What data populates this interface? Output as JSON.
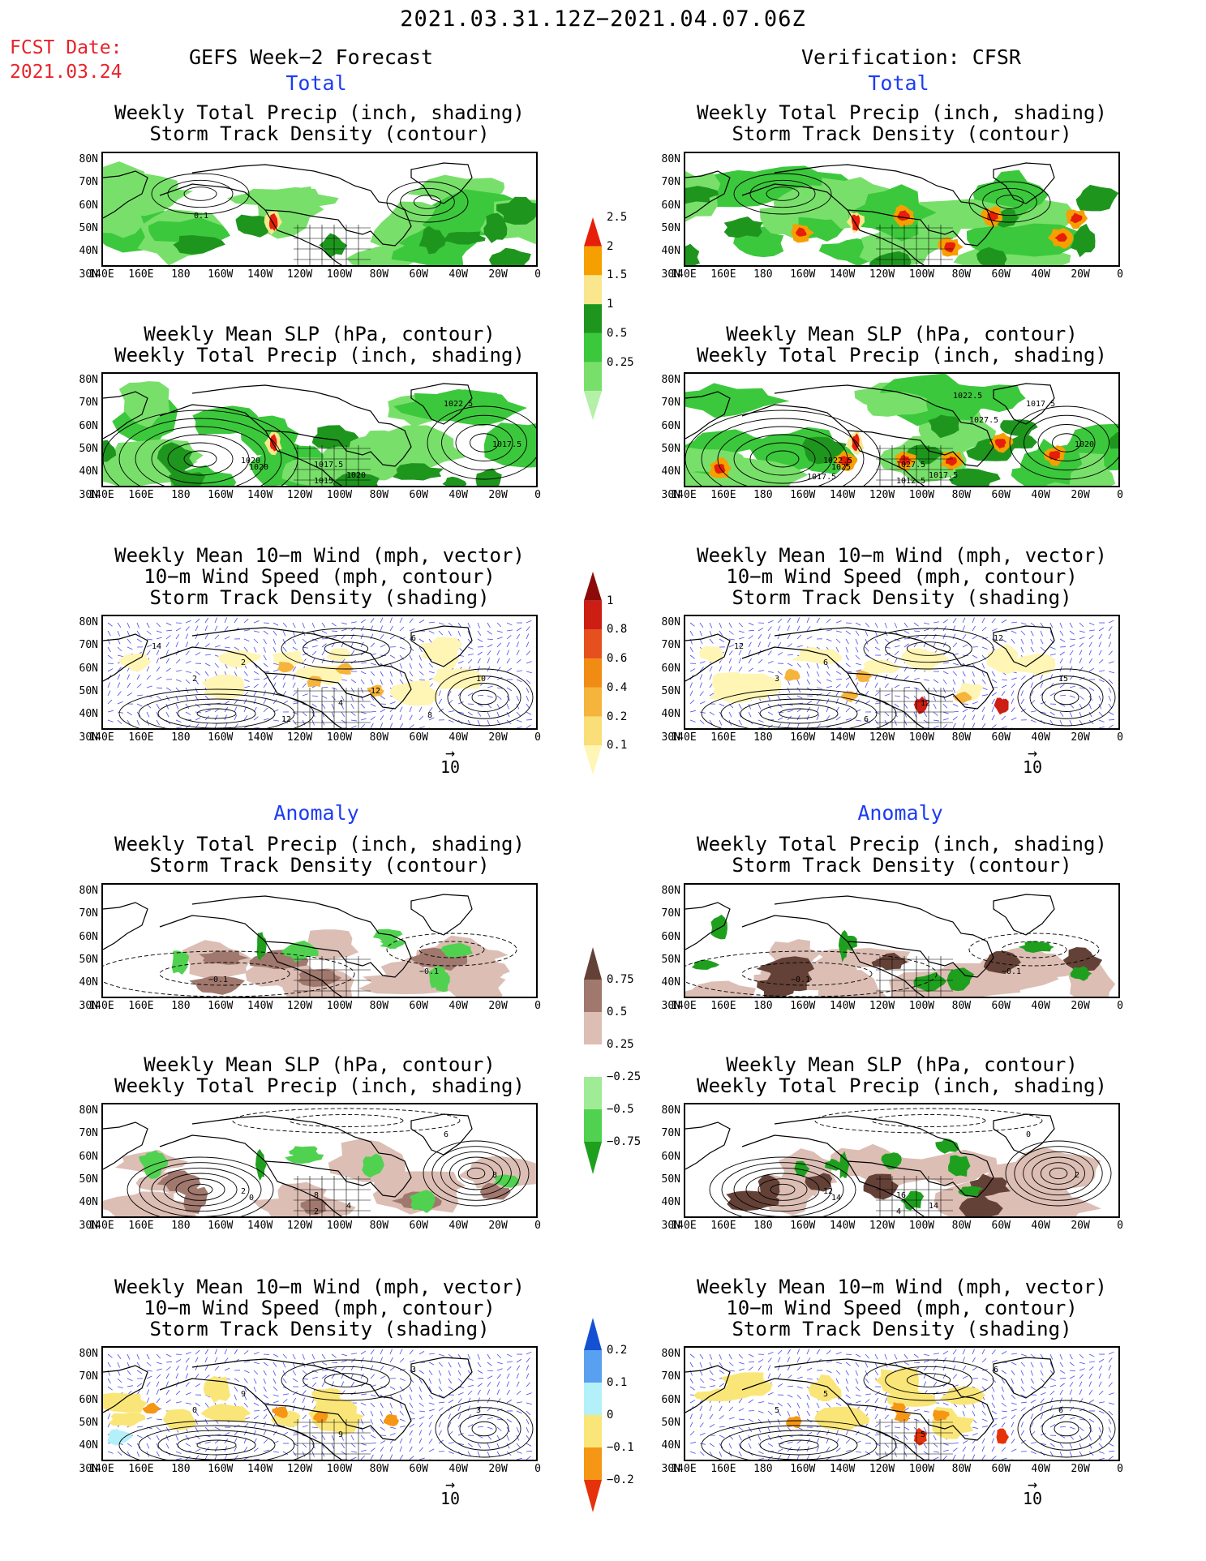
{
  "header": {
    "date_range": "2021.03.31.12Z−2021.04.07.06Z",
    "fcst_label": "FCST Date:",
    "fcst_date": "2021.03.24",
    "left_title": "GEFS Week−2 Forecast",
    "right_title": "Verification: CFSR",
    "total_label": "Total",
    "anomaly_label": "Anomaly"
  },
  "panel_titles": {
    "precip_storm": [
      "Weekly Total Precip (inch, shading)",
      "Storm Track Density (contour)"
    ],
    "slp_precip": [
      "Weekly Mean SLP (hPa, contour)",
      "Weekly Total Precip (inch, shading)"
    ],
    "wind_storm": [
      "Weekly Mean 10−m Wind (mph, vector)",
      "10−m Wind Speed (mph, contour)",
      "Storm Track Density (shading)"
    ]
  },
  "axes": {
    "lat_labels": [
      "80N",
      "70N",
      "60N",
      "50N",
      "40N",
      "30N"
    ],
    "lon_labels": [
      "140E",
      "160E",
      "180",
      "160W",
      "140W",
      "120W",
      "100W",
      "80W",
      "60W",
      "40W",
      "20W",
      "0"
    ],
    "ref_vector_value": "10"
  },
  "colorbars": {
    "total_precip": {
      "labels": [
        "0.25",
        "0.5",
        "1",
        "1.5",
        "2",
        "2.5"
      ],
      "colors": [
        "#b4f0a8",
        "#78e06a",
        "#3cc83c",
        "#1e961e",
        "#fae68c",
        "#f5a000",
        "#e61e0a"
      ]
    },
    "total_storm": {
      "labels": [
        "0.1",
        "0.2",
        "0.4",
        "0.6",
        "0.8",
        "1"
      ],
      "colors": [
        "#fff5b4",
        "#fade78",
        "#f5b43c",
        "#f08c14",
        "#e6501e",
        "#cd1e14",
        "#8c0a0a"
      ]
    },
    "anom_precip": {
      "labels": [
        "0.75",
        "0.5",
        "0.25",
        "−0.25",
        "−0.5",
        "−0.75"
      ],
      "colors": [
        "#1ea01e",
        "#50d250",
        "#a0eb96",
        "#ffffff",
        "#dcbeb4",
        "#a0786e",
        "#644137"
      ]
    },
    "anom_storm": {
      "labels": [
        "0.2",
        "0.1",
        "0",
        "−0.1",
        "−0.2"
      ],
      "colors": [
        "#e6320a",
        "#f59614",
        "#fae678",
        "#b4f0fa",
        "#5aa0f0",
        "#1450d2"
      ]
    }
  },
  "contour_labels": {
    "fcst_total_precip": [
      "0.1"
    ],
    "fcst_total_slp": [
      "1020",
      "1020",
      "1017.5",
      "1020",
      "1015",
      "1017.5",
      "1022.5"
    ],
    "fcst_total_wind": [
      "2",
      "2",
      "4",
      "6",
      "10",
      "12",
      "14",
      "12",
      "8"
    ],
    "obs_total_slp": [
      "1022.5",
      "1025",
      "1027.5",
      "1017.5",
      "1012.5",
      "1020",
      "1017.5",
      "1022.5",
      "1027.5",
      "1017.5"
    ],
    "obs_total_wind": [
      "3",
      "6",
      "12",
      "12",
      "15",
      "6",
      "12"
    ],
    "fcst_anom_precip": [
      "−0.1",
      "−0.1"
    ],
    "obs_anom_precip": [
      "−0.1",
      "−0.1"
    ],
    "fcst_anom_slp": [
      "2",
      "0",
      "8",
      "4",
      "2",
      "8",
      "6"
    ],
    "obs_anom_slp": [
      "12",
      "14",
      "16",
      "14",
      "4",
      "2",
      "0"
    ],
    "fcst_anom_wind": [
      "0",
      "9",
      "9",
      "3",
      "3"
    ],
    "obs_anom_wind": [
      "5",
      "5",
      "5",
      "6",
      "6"
    ]
  }
}
